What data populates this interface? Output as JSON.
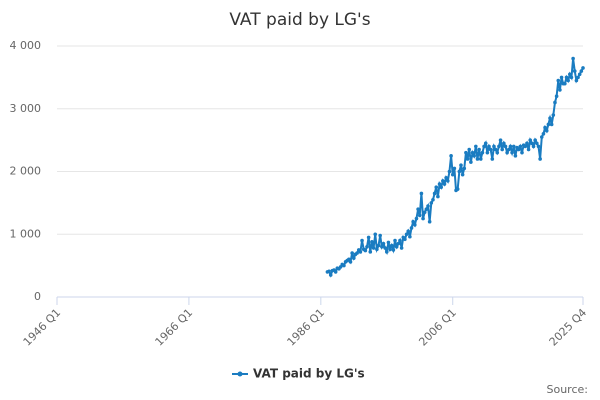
{
  "chart_data": {
    "type": "line",
    "title": "VAT paid by LG's",
    "source": "Source:",
    "x": [
      "1987 Q1",
      "1987 Q2",
      "1987 Q3",
      "1987 Q4",
      "1988 Q1",
      "1988 Q2",
      "1988 Q3",
      "1988 Q4",
      "1989 Q1",
      "1989 Q2",
      "1989 Q3",
      "1989 Q4",
      "1990 Q1",
      "1990 Q2",
      "1990 Q3",
      "1990 Q4",
      "1991 Q1",
      "1991 Q2",
      "1991 Q3",
      "1991 Q4",
      "1992 Q1",
      "1992 Q2",
      "1992 Q3",
      "1992 Q4",
      "1993 Q1",
      "1993 Q2",
      "1993 Q3",
      "1993 Q4",
      "1994 Q1",
      "1994 Q2",
      "1994 Q3",
      "1994 Q4",
      "1995 Q1",
      "1995 Q2",
      "1995 Q3",
      "1995 Q4",
      "1996 Q1",
      "1996 Q2",
      "1996 Q3",
      "1996 Q4",
      "1997 Q1",
      "1997 Q2",
      "1997 Q3",
      "1997 Q4",
      "1998 Q1",
      "1998 Q2",
      "1998 Q3",
      "1998 Q4",
      "1999 Q1",
      "1999 Q2",
      "1999 Q3",
      "1999 Q4",
      "2000 Q1",
      "2000 Q2",
      "2000 Q3",
      "2000 Q4",
      "2001 Q1",
      "2001 Q2",
      "2001 Q3",
      "2001 Q4",
      "2002 Q1",
      "2002 Q2",
      "2002 Q3",
      "2002 Q4",
      "2003 Q1",
      "2003 Q2",
      "2003 Q3",
      "2003 Q4",
      "2004 Q1",
      "2004 Q2",
      "2004 Q3",
      "2004 Q4",
      "2005 Q1",
      "2005 Q2",
      "2005 Q3",
      "2005 Q4",
      "2006 Q1",
      "2006 Q2",
      "2006 Q3",
      "2006 Q4",
      "2007 Q1",
      "2007 Q2",
      "2007 Q3",
      "2007 Q4",
      "2008 Q1",
      "2008 Q2",
      "2008 Q3",
      "2008 Q4",
      "2009 Q1",
      "2009 Q2",
      "2009 Q3",
      "2009 Q4",
      "2010 Q1",
      "2010 Q2",
      "2010 Q3",
      "2010 Q4",
      "2011 Q1",
      "2011 Q2",
      "2011 Q3",
      "2011 Q4",
      "2012 Q1",
      "2012 Q2",
      "2012 Q3",
      "2012 Q4",
      "2013 Q1",
      "2013 Q2",
      "2013 Q3",
      "2013 Q4",
      "2014 Q1",
      "2014 Q2",
      "2014 Q3",
      "2014 Q4",
      "2015 Q1",
      "2015 Q2",
      "2015 Q3",
      "2015 Q4",
      "2016 Q1",
      "2016 Q2",
      "2016 Q3",
      "2016 Q4",
      "2017 Q1",
      "2017 Q2",
      "2017 Q3",
      "2017 Q4",
      "2018 Q1",
      "2018 Q2",
      "2018 Q3",
      "2018 Q4",
      "2019 Q1",
      "2019 Q2",
      "2019 Q3",
      "2019 Q4",
      "2020 Q1",
      "2020 Q2",
      "2020 Q3",
      "2020 Q4",
      "2021 Q1",
      "2021 Q2",
      "2021 Q3",
      "2021 Q4",
      "2022 Q1",
      "2022 Q2",
      "2022 Q3",
      "2022 Q4",
      "2023 Q1",
      "2023 Q2",
      "2023 Q3",
      "2023 Q4",
      "2024 Q1",
      "2024 Q2",
      "2024 Q3",
      "2024 Q4",
      "2025 Q1",
      "2025 Q2",
      "2025 Q3",
      "2025 Q4"
    ],
    "series": [
      {
        "name": "VAT paid by LG's",
        "color": "#1a7cc1",
        "values": [
          400,
          410,
          350,
          420,
          430,
          400,
          460,
          450,
          480,
          520,
          500,
          560,
          580,
          600,
          560,
          700,
          620,
          680,
          700,
          750,
          720,
          900,
          760,
          740,
          800,
          950,
          720,
          880,
          780,
          1000,
          760,
          820,
          980,
          800,
          850,
          780,
          720,
          870,
          760,
          820,
          750,
          900,
          800,
          850,
          900,
          780,
          950,
          920,
          1000,
          1050,
          960,
          1100,
          1200,
          1150,
          1250,
          1400,
          1300,
          1650,
          1250,
          1350,
          1400,
          1450,
          1200,
          1500,
          1550,
          1650,
          1750,
          1600,
          1800,
          1750,
          1850,
          1800,
          1900,
          1850,
          2000,
          2250,
          1950,
          2050,
          1700,
          1720,
          2000,
          2100,
          1950,
          2050,
          2300,
          2200,
          2350,
          2150,
          2300,
          2250,
          2400,
          2200,
          2350,
          2200,
          2300,
          2400,
          2450,
          2300,
          2400,
          2350,
          2200,
          2400,
          2350,
          2300,
          2400,
          2500,
          2350,
          2450,
          2400,
          2300,
          2350,
          2400,
          2300,
          2400,
          2250,
          2380,
          2350,
          2400,
          2300,
          2420,
          2400,
          2450,
          2350,
          2500,
          2450,
          2400,
          2500,
          2450,
          2400,
          2200,
          2550,
          2600,
          2700,
          2650,
          2750,
          2850,
          2750,
          2900,
          3100,
          3200,
          3450,
          3300,
          3500,
          3400,
          3400,
          3500,
          3450,
          3550,
          3500,
          3800,
          3600,
          3450,
          3500,
          3550,
          3600,
          3650
        ]
      }
    ],
    "xlim": [
      "1946 Q1",
      "2025 Q4"
    ],
    "xticks": [
      "1946 Q1",
      "1966 Q1",
      "1986 Q1",
      "2006 Q1",
      "2025 Q4"
    ],
    "ylim": [
      0,
      4000
    ],
    "yticks": [
      0,
      {
        "value": 1000,
        "label": "1 000"
      },
      {
        "value": 2000,
        "label": "2 000"
      },
      {
        "value": 3000,
        "label": "3 000"
      },
      {
        "value": 4000,
        "label": "4 000"
      }
    ],
    "grid": true
  }
}
